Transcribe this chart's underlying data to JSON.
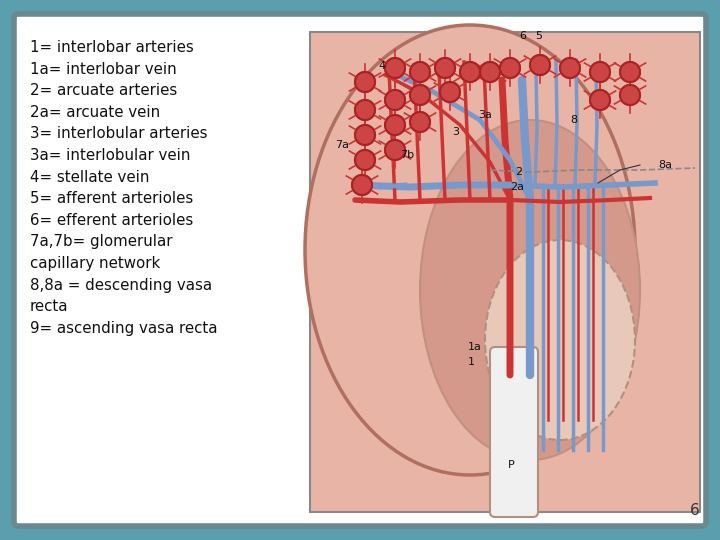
{
  "bg_color": "#5b9eae",
  "panel_bg": "#d0d0d0",
  "inner_bg": "#ffffff",
  "title_lines": [
    "1= interlobar arteries",
    "1a= interlobar vein",
    "2= arcuate arteries",
    "2a= arcuate vein",
    "3= interlobular arteries",
    "3a= interlobular vein",
    "4= stellate vein",
    "5= afferent arterioles",
    "6= efferent arterioles",
    "7a,7b= glomerular\ncapillary network",
    "8,8a = descending vasa\nrecta",
    "9= ascending vasa recta"
  ],
  "text_color": "#111111",
  "font_size": 10.8,
  "slide_number": "6",
  "panel_border_color": "#6a8a90",
  "kidney_bg": "#e8b4a5",
  "cortex_color": "#e8b4a5",
  "medulla_color": "#d4998a",
  "pelvis_color": "#e8c8b8",
  "artery_color": "#cc3333",
  "vein_color": "#7799cc",
  "glom_color": "#cc4444",
  "label_color": "#111111"
}
